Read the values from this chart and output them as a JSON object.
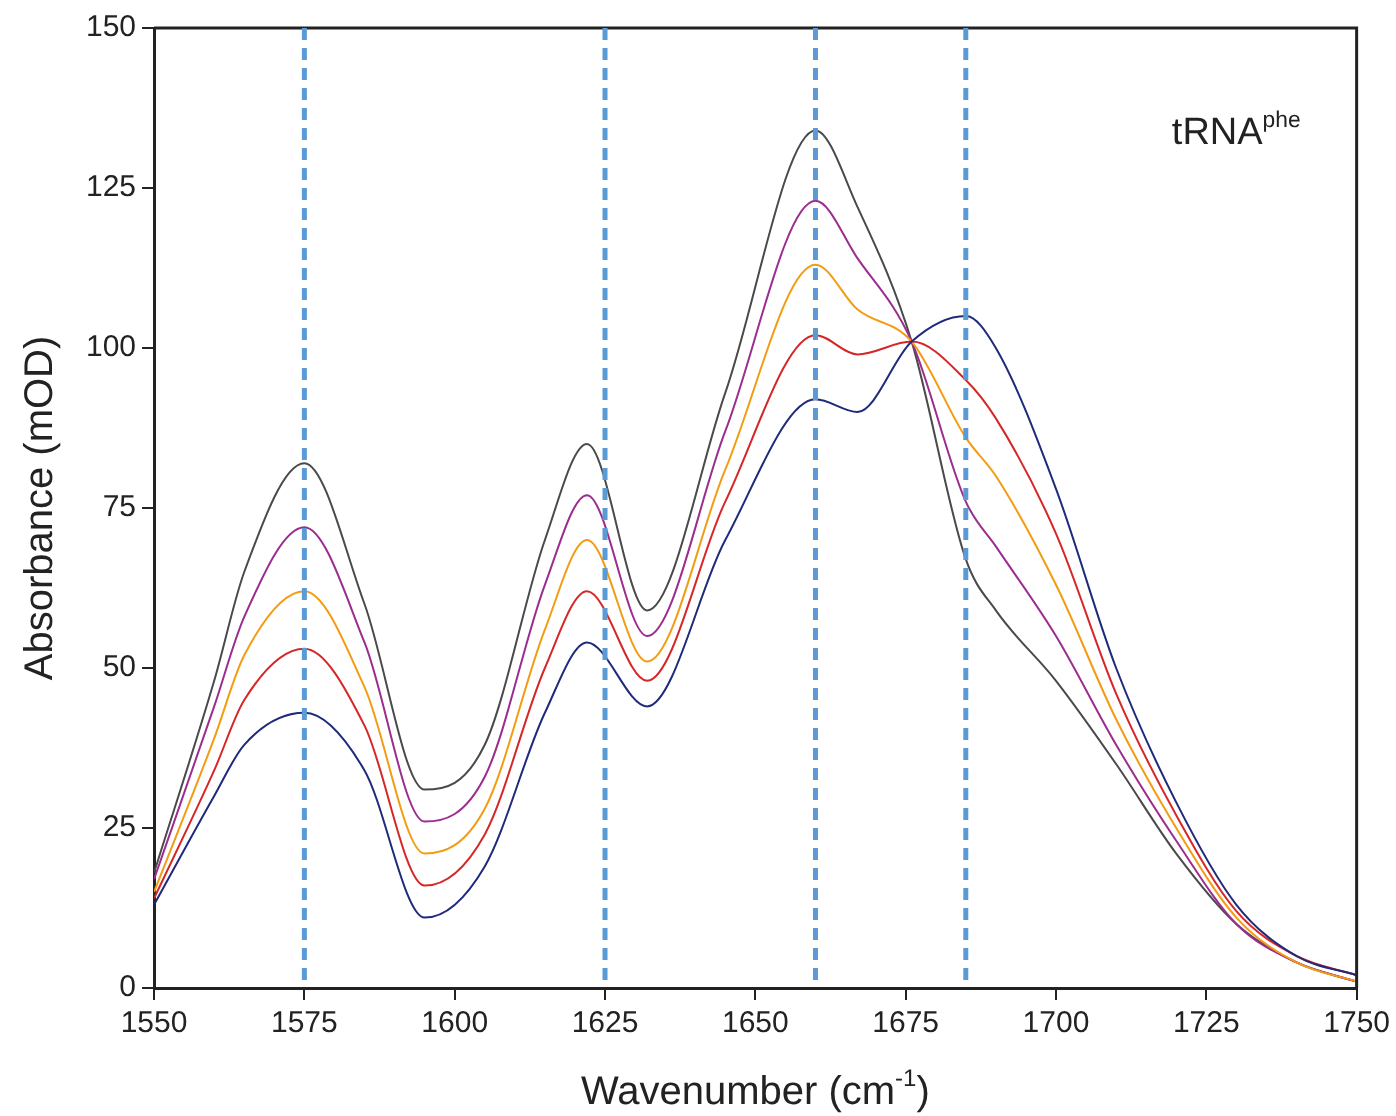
{
  "chart_data": {
    "type": "line",
    "xlabel": "Wavenumber (cm$^{-1}$)",
    "ylabel": "Absorbance (mOD)",
    "annotations": [
      "tRNA$^{phe}$"
    ],
    "x": [
      1550,
      1560,
      1565,
      1575,
      1585,
      1595,
      1605,
      1615,
      1622,
      1632,
      1645,
      1660,
      1667,
      1676,
      1685,
      1690,
      1700,
      1710,
      1720,
      1730,
      1740,
      1750
    ],
    "series": [
      {
        "color": "#1f2a7a",
        "values": [
          13,
          30,
          38,
          43,
          34,
          11,
          19,
          43,
          54,
          44,
          70,
          92,
          90,
          101,
          105,
          100,
          78,
          50,
          29,
          13,
          5,
          2
        ]
      },
      {
        "color": "#d62728",
        "values": [
          14,
          34,
          45,
          53,
          41,
          16,
          24,
          50,
          62,
          48,
          76,
          102,
          99,
          101,
          95,
          89,
          71,
          46,
          27,
          12,
          5,
          2
        ]
      },
      {
        "color": "#f39c12",
        "values": [
          15,
          39,
          52,
          62,
          47,
          21,
          28,
          56,
          70,
          51,
          81,
          113,
          106,
          101,
          86,
          80,
          63,
          42,
          25,
          11,
          4,
          1
        ]
      },
      {
        "color": "#9b2d8f",
        "values": [
          17,
          44,
          58,
          72,
          54,
          26,
          33,
          63,
          77,
          55,
          87,
          123,
          114,
          101,
          76,
          69,
          55,
          38,
          23,
          10,
          4,
          1
        ]
      },
      {
        "color": "#4a4a4a",
        "values": [
          18,
          48,
          65,
          82,
          60,
          31,
          38,
          70,
          85,
          59,
          93,
          134,
          122,
          101,
          67,
          59,
          48,
          35,
          21,
          10,
          4,
          1
        ]
      }
    ],
    "xlim": [
      1550,
      1750
    ],
    "xticks": [
      1550,
      1575,
      1600,
      1625,
      1650,
      1675,
      1700,
      1725,
      1750
    ],
    "ylim": [
      0,
      150
    ],
    "yticks": [
      0,
      25,
      50,
      75,
      100,
      125,
      150
    ],
    "ref_lines": [
      {
        "axis": "x",
        "value": 1575,
        "color": "#5b9bd5",
        "line_style": "dashed"
      },
      {
        "axis": "x",
        "value": 1625,
        "color": "#5b9bd5",
        "line_style": "dashed"
      },
      {
        "axis": "x",
        "value": 1660,
        "color": "#5b9bd5",
        "line_style": "dashed"
      },
      {
        "axis": "x",
        "value": 1685,
        "color": "#5b9bd5",
        "line_style": "dashed"
      }
    ],
    "grid": false,
    "legend": false,
    "marker": "none",
    "line_style": "solid"
  }
}
